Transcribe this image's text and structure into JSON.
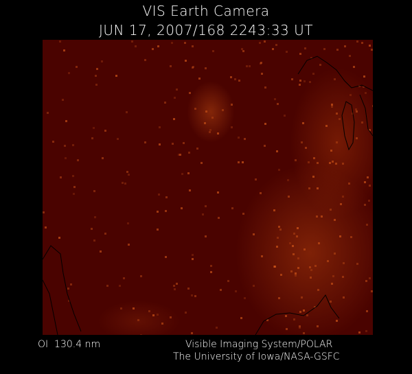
{
  "header": {
    "title": "VIS Earth Camera",
    "timestamp": "JUN 17, 2007/168 2243:33 UT"
  },
  "image": {
    "background_color": "#4a0300",
    "emission_color": "#ff7a1a",
    "coastline_color": "#000000"
  },
  "footer": {
    "wavelength": "OI  130.4 nm",
    "credit_line1": "Visible Imaging System/POLAR",
    "credit_line2": "The University of Iowa/NASA-GSFC"
  }
}
